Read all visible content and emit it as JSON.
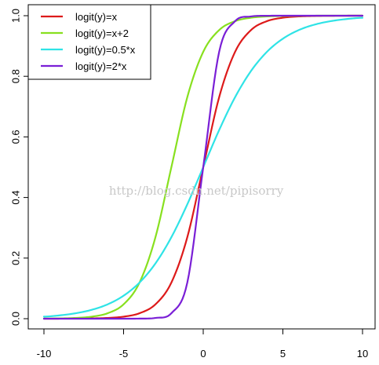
{
  "chart_data": {
    "type": "line",
    "title": "",
    "xlabel": "",
    "ylabel": "",
    "xlim": [
      -10,
      10
    ],
    "ylim": [
      0,
      1
    ],
    "x_ticks": [
      -10,
      -5,
      0,
      5,
      10
    ],
    "x_tick_labels": [
      "-10",
      "-5",
      "0",
      "5",
      "10"
    ],
    "y_ticks": [
      0.0,
      0.2,
      0.4,
      0.6,
      0.8,
      1.0
    ],
    "y_tick_labels": [
      "0.0",
      "0.2",
      "0.4",
      "0.6",
      "0.8",
      "1.0"
    ],
    "grid": false,
    "legend_position": "top-left",
    "x": [
      -10,
      -9,
      -8,
      -7,
      -6,
      -5,
      -4,
      -3,
      -2,
      -1,
      0,
      1,
      2,
      3,
      4,
      5,
      6,
      7,
      8,
      9,
      10
    ],
    "series": [
      {
        "name": "logit(y)=x",
        "color": "#dd1a1a",
        "values": [
          0.0,
          0.0001,
          0.0003,
          0.0009,
          0.0025,
          0.0067,
          0.018,
          0.0474,
          0.1192,
          0.2689,
          0.5,
          0.7311,
          0.8808,
          0.9526,
          0.982,
          0.9933,
          0.9975,
          0.9991,
          0.9997,
          0.9999,
          1.0
        ]
      },
      {
        "name": "logit(y)=x+2",
        "color": "#88e01f",
        "values": [
          0.0003,
          0.0009,
          0.0025,
          0.0067,
          0.018,
          0.0474,
          0.1192,
          0.2689,
          0.5,
          0.7311,
          0.8808,
          0.9526,
          0.982,
          0.9933,
          0.9975,
          0.9991,
          0.9997,
          0.9999,
          1.0,
          1.0,
          1.0
        ]
      },
      {
        "name": "logit(y)=0.5*x",
        "color": "#2fe3e6",
        "values": [
          0.0067,
          0.011,
          0.018,
          0.0293,
          0.0474,
          0.0759,
          0.1192,
          0.1824,
          0.2689,
          0.3775,
          0.5,
          0.6225,
          0.7311,
          0.8176,
          0.8808,
          0.9241,
          0.9526,
          0.9707,
          0.982,
          0.989,
          0.9933
        ]
      },
      {
        "name": "logit(y)=2*x",
        "color": "#7a1fd6",
        "values": [
          0.0,
          0.0,
          0.0,
          0.0,
          0.0,
          0.0,
          0.0003,
          0.0025,
          0.018,
          0.1192,
          0.5,
          0.8808,
          0.982,
          0.9975,
          0.9997,
          1.0,
          1.0,
          1.0,
          1.0,
          1.0,
          1.0
        ]
      }
    ]
  },
  "watermark": "http://blog.csdn.net/pipisorry"
}
